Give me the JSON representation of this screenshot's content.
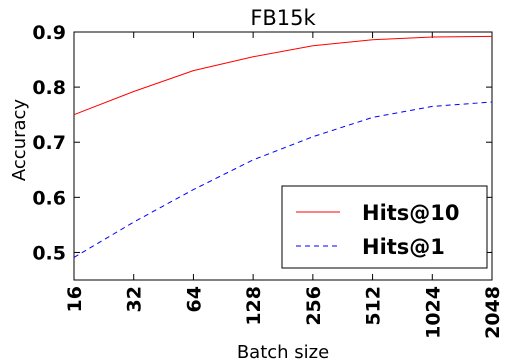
{
  "chart_data": {
    "type": "line",
    "title": "FB15k",
    "xlabel": "Batch size",
    "ylabel": "Accuracy",
    "x": [
      "16",
      "32",
      "64",
      "128",
      "256",
      "512",
      "1024",
      "2048"
    ],
    "ylim": [
      0.45,
      0.9
    ],
    "yticks": [
      "0.5",
      "0.6",
      "0.7",
      "0.8",
      "0.9"
    ],
    "grid": false,
    "legend_position": "bottom-right",
    "series": [
      {
        "name": "Hits@10",
        "color": "#ff0000",
        "style": "solid",
        "values": [
          0.75,
          0.792,
          0.83,
          0.855,
          0.875,
          0.886,
          0.891,
          0.892
        ]
      },
      {
        "name": "Hits@1",
        "color": "#0000ff",
        "style": "dashed",
        "values": [
          0.491,
          0.555,
          0.614,
          0.668,
          0.71,
          0.745,
          0.765,
          0.773
        ]
      }
    ]
  }
}
